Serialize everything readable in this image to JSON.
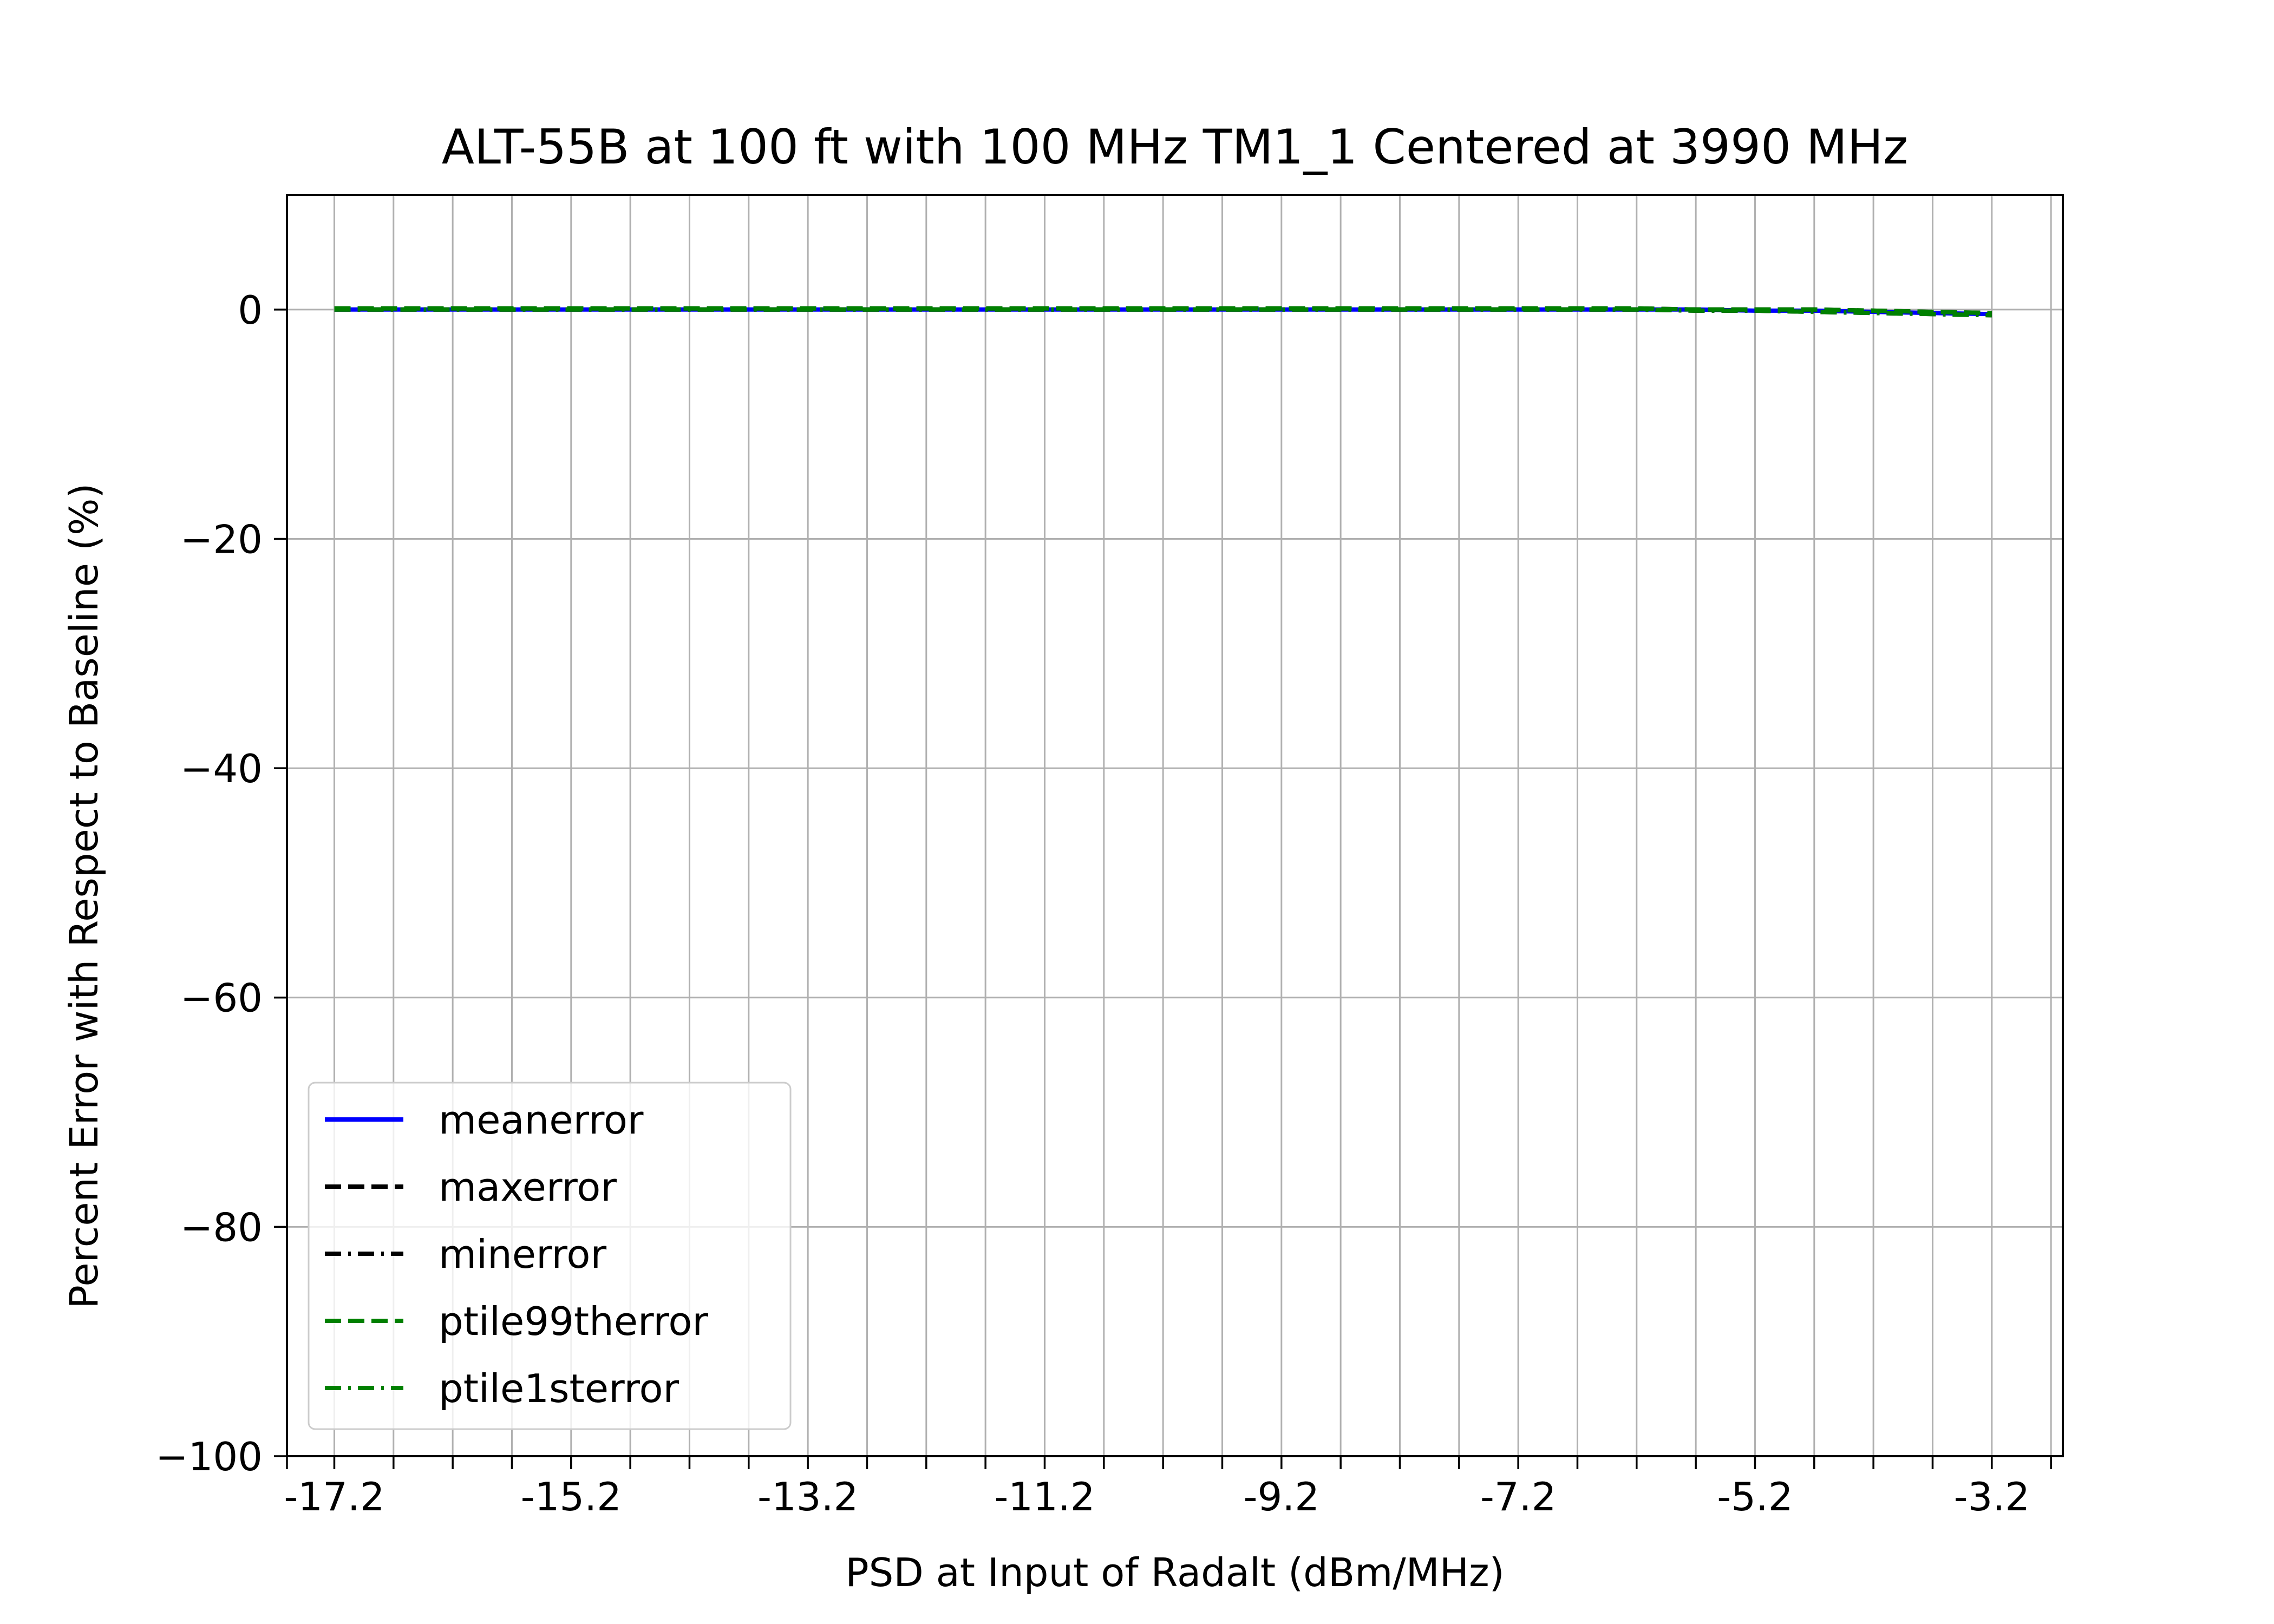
{
  "chart_data": {
    "type": "line",
    "title": "ALT-55B at 100 ft with 100 MHz TM1_1 Centered at 3990 MHz",
    "xlabel": "PSD at Input of Radalt (dBm/MHz)",
    "ylabel": "Percent Error with Respect to Baseline (%)",
    "xlim": [
      -17.6,
      -2.6
    ],
    "ylim": [
      -100,
      10
    ],
    "x_ticks": [
      -17.6,
      -17.2,
      -16.7,
      -16.2,
      -15.7,
      -15.2,
      -14.7,
      -14.2,
      -13.7,
      -13.2,
      -12.7,
      -12.2,
      -11.7,
      -11.2,
      -10.7,
      -10.2,
      -9.7,
      -9.2,
      -8.7,
      -8.2,
      -7.7,
      -7.2,
      -6.7,
      -6.2,
      -5.7,
      -5.2,
      -4.7,
      -4.2,
      -3.7,
      -3.2,
      -2.7
    ],
    "x_tick_labels": [
      "-17.2",
      "-15.2",
      "-13.2",
      "-11.2",
      "-9.2",
      "-7.2",
      "-5.2",
      "-3.2"
    ],
    "x_labeled_ticks": [
      -17.2,
      -15.2,
      -13.2,
      -11.2,
      -9.2,
      -7.2,
      -5.2,
      -3.2
    ],
    "y_ticks": [
      0,
      -20,
      -40,
      -60,
      -80,
      -100
    ],
    "y_tick_labels": [
      "0",
      "−20",
      "−40",
      "−60",
      "−80",
      "−100"
    ],
    "grid": true,
    "legend_position": "bottom-left",
    "x": [
      -17.2,
      -16.7,
      -16.2,
      -15.7,
      -15.2,
      -14.7,
      -14.2,
      -13.7,
      -13.2,
      -12.7,
      -12.2,
      -11.7,
      -11.2,
      -10.7,
      -10.2,
      -9.7,
      -9.2,
      -8.7,
      -8.2,
      -7.7,
      -7.2,
      -6.7,
      -6.2,
      -5.7,
      -5.2,
      -4.7,
      -4.2,
      -3.7,
      -3.2
    ],
    "series": [
      {
        "name": "meanerror",
        "color": "#0000ff",
        "dash": "solid",
        "values": [
          0,
          0,
          0,
          0,
          0,
          0,
          0,
          0,
          0,
          0,
          0,
          0,
          0,
          0,
          0,
          0,
          0,
          0,
          0,
          0,
          0,
          0,
          0,
          0,
          -0.1,
          -0.1,
          -0.2,
          -0.3,
          -0.4
        ]
      },
      {
        "name": "maxerror",
        "color": "#000000",
        "dash": "dashed",
        "values": [
          0.1,
          0.1,
          0.1,
          0.1,
          0.1,
          0.1,
          0.1,
          0.1,
          0.1,
          0.1,
          0.1,
          0.1,
          0.1,
          0.1,
          0.1,
          0.1,
          0.1,
          0.1,
          0.1,
          0.1,
          0.1,
          0.1,
          0.1,
          0,
          0,
          0,
          -0.1,
          -0.2,
          -0.3
        ]
      },
      {
        "name": "minerror",
        "color": "#000000",
        "dash": "dashdot",
        "values": [
          0,
          0,
          0,
          0,
          0,
          0,
          0,
          0,
          0,
          0,
          0,
          0,
          0,
          0,
          0,
          0,
          0,
          0,
          0,
          0,
          0,
          0,
          0,
          -0.1,
          -0.1,
          -0.2,
          -0.3,
          -0.4,
          -0.5
        ]
      },
      {
        "name": "ptile99therror",
        "color": "#008000",
        "dash": "dashed",
        "values": [
          0.1,
          0.1,
          0.1,
          0.1,
          0.1,
          0.1,
          0.1,
          0.1,
          0.1,
          0.1,
          0.1,
          0.1,
          0.1,
          0.1,
          0.1,
          0.1,
          0.1,
          0.1,
          0.1,
          0.1,
          0.1,
          0.1,
          0.1,
          0,
          0,
          0,
          -0.1,
          -0.2,
          -0.3
        ]
      },
      {
        "name": "ptile1sterror",
        "color": "#008000",
        "dash": "dashdot",
        "values": [
          0,
          0,
          0,
          0,
          0,
          0,
          0,
          0,
          0,
          0,
          0,
          0,
          0,
          0,
          0,
          0,
          0,
          0,
          0,
          0,
          0,
          0,
          0,
          -0.1,
          -0.1,
          -0.2,
          -0.3,
          -0.4,
          -0.5
        ]
      }
    ]
  }
}
